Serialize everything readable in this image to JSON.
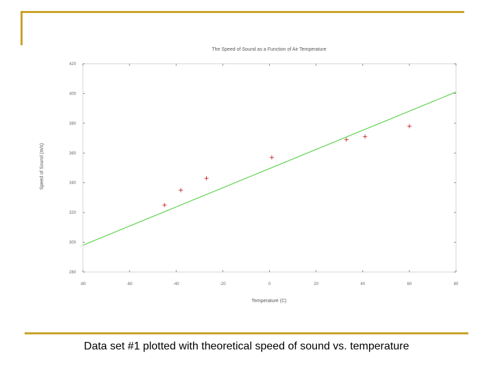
{
  "slide": {
    "caption": "Data set #1 plotted with theoretical speed of sound vs. temperature",
    "accent_color": "#c9a227"
  },
  "chart_data": {
    "type": "scatter",
    "title": "The Speed of Sound as a Function of Air Temperature",
    "xlabel": "Temperature (C)",
    "ylabel": "Speed of Sound (m/s)",
    "xlim": [
      -80,
      80
    ],
    "ylim": [
      280,
      420
    ],
    "x_ticks": [
      -80,
      -60,
      -40,
      -20,
      0,
      20,
      40,
      60,
      80
    ],
    "y_ticks": [
      280,
      300,
      320,
      340,
      360,
      380,
      400,
      420
    ],
    "grid": false,
    "series": [
      {
        "type": "scatter",
        "marker": "+",
        "color": "#cc3333",
        "x": [
          -45,
          -38,
          -27,
          1,
          33,
          41,
          60
        ],
        "y": [
          325,
          335,
          343,
          357,
          369,
          371,
          378
        ]
      },
      {
        "type": "line",
        "color": "#44cc33",
        "x": [
          -80,
          80
        ],
        "y": [
          298,
          401
        ]
      }
    ]
  }
}
